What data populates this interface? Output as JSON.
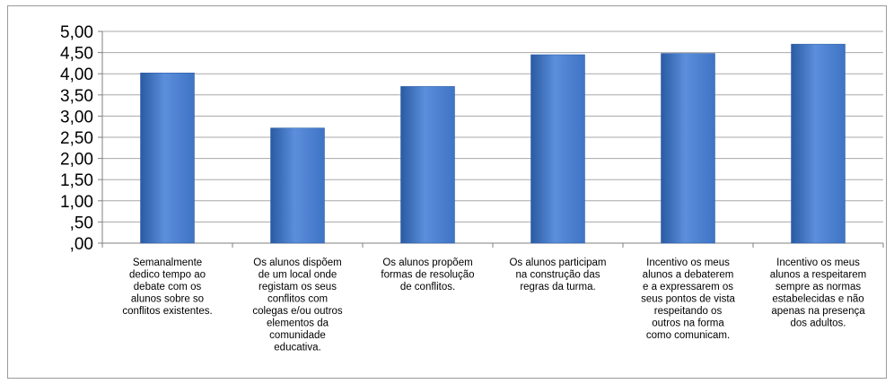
{
  "chart_data": {
    "type": "bar",
    "title": "",
    "xlabel": "",
    "ylabel": "",
    "ylim": [
      0,
      5
    ],
    "grid": true,
    "legend": "none",
    "y_tick_labels": [
      ",00",
      ",50",
      "1,00",
      "1,50",
      "2,00",
      "2,50",
      "3,00",
      "3,50",
      "4,00",
      "4,50",
      "5,00"
    ],
    "categories": [
      [
        "Semanalmente",
        "dedico tempo ao",
        "debate com os",
        "alunos sobre so",
        "conflitos existentes."
      ],
      [
        "Os alunos dispõem",
        "de um local onde",
        "registam os seus",
        "conflitos com",
        "colegas e/ou outros",
        "elementos da",
        "comunidade",
        "educativa."
      ],
      [
        "Os alunos propõem",
        "formas de resolução",
        "de conflitos."
      ],
      [
        "Os alunos participam",
        "na construção das",
        "regras da turma."
      ],
      [
        "Incentivo os meus",
        "alunos a debaterem",
        "e a expressarem os",
        "seus pontos de vista",
        "respeitando os",
        "outros na forma",
        "como comunicam."
      ],
      [
        "Incentivo os meus",
        "alunos a respeitarem",
        "sempre as normas",
        "estabelecidas e não",
        "apenas na presença",
        "dos adultos."
      ]
    ],
    "values": [
      4.02,
      2.72,
      3.7,
      4.45,
      4.48,
      4.7
    ],
    "bar_color": "#3f73c4",
    "bar_color_light": "#5b8fdc",
    "bar_color_dark": "#2a5aa3"
  }
}
